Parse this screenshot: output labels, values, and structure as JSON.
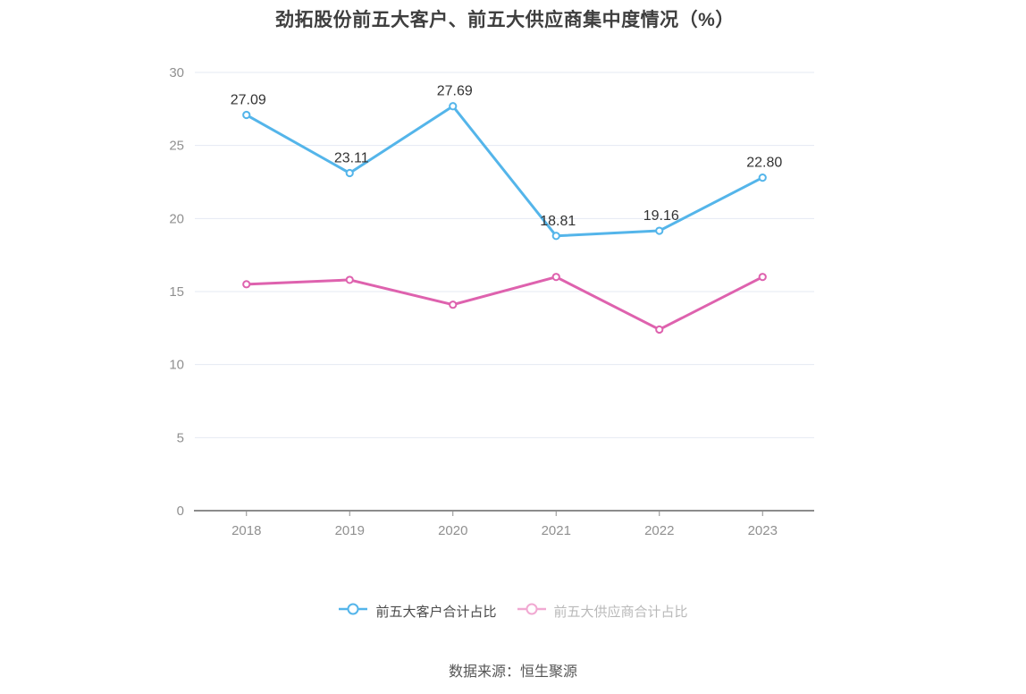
{
  "title": "劲拓股份前五大客户、前五大供应商集中度情况（%）",
  "footer": {
    "source": "数据来源：恒生聚源"
  },
  "legend": {
    "items": [
      {
        "label": "前五大客户合计占比",
        "marker_color": "#54b5ea",
        "label_color": "#4a4a4a"
      },
      {
        "label": "前五大供应商合计占比",
        "marker_color": "#f1a9d2",
        "label_color": "#b9b9b9"
      }
    ]
  },
  "colors": {
    "customer_line": "#54b5ea",
    "supplier_line": "#de62ae",
    "grid": "#e4eaf3",
    "axis": "#8c8c8c",
    "tick_label": "#909090",
    "point_label": "#333333",
    "title": "#3e3e3e",
    "source_text": "#555555",
    "background": "#ffffff"
  },
  "chart_data": {
    "type": "line",
    "title": "劲拓股份前五大客户、前五大供应商集中度情况（%）",
    "categories": [
      "2018",
      "2019",
      "2020",
      "2021",
      "2022",
      "2023"
    ],
    "series": [
      {
        "name": "前五大客户合计占比",
        "color": "#54b5ea",
        "values": [
          27.09,
          23.11,
          27.69,
          18.81,
          19.16,
          22.8
        ],
        "point_labels": [
          "27.09",
          "23.11",
          "27.69",
          "18.81",
          "19.16",
          "22.80"
        ]
      },
      {
        "name": "前五大供应商合计占比",
        "color": "#de62ae",
        "values": [
          15.5,
          15.8,
          14.1,
          16.0,
          12.4,
          16.0
        ],
        "point_labels": []
      }
    ],
    "xlabel": "",
    "ylabel": "",
    "ylim": [
      0,
      30
    ],
    "ytick_step": 5,
    "grid": true,
    "legend_position": "bottom"
  }
}
